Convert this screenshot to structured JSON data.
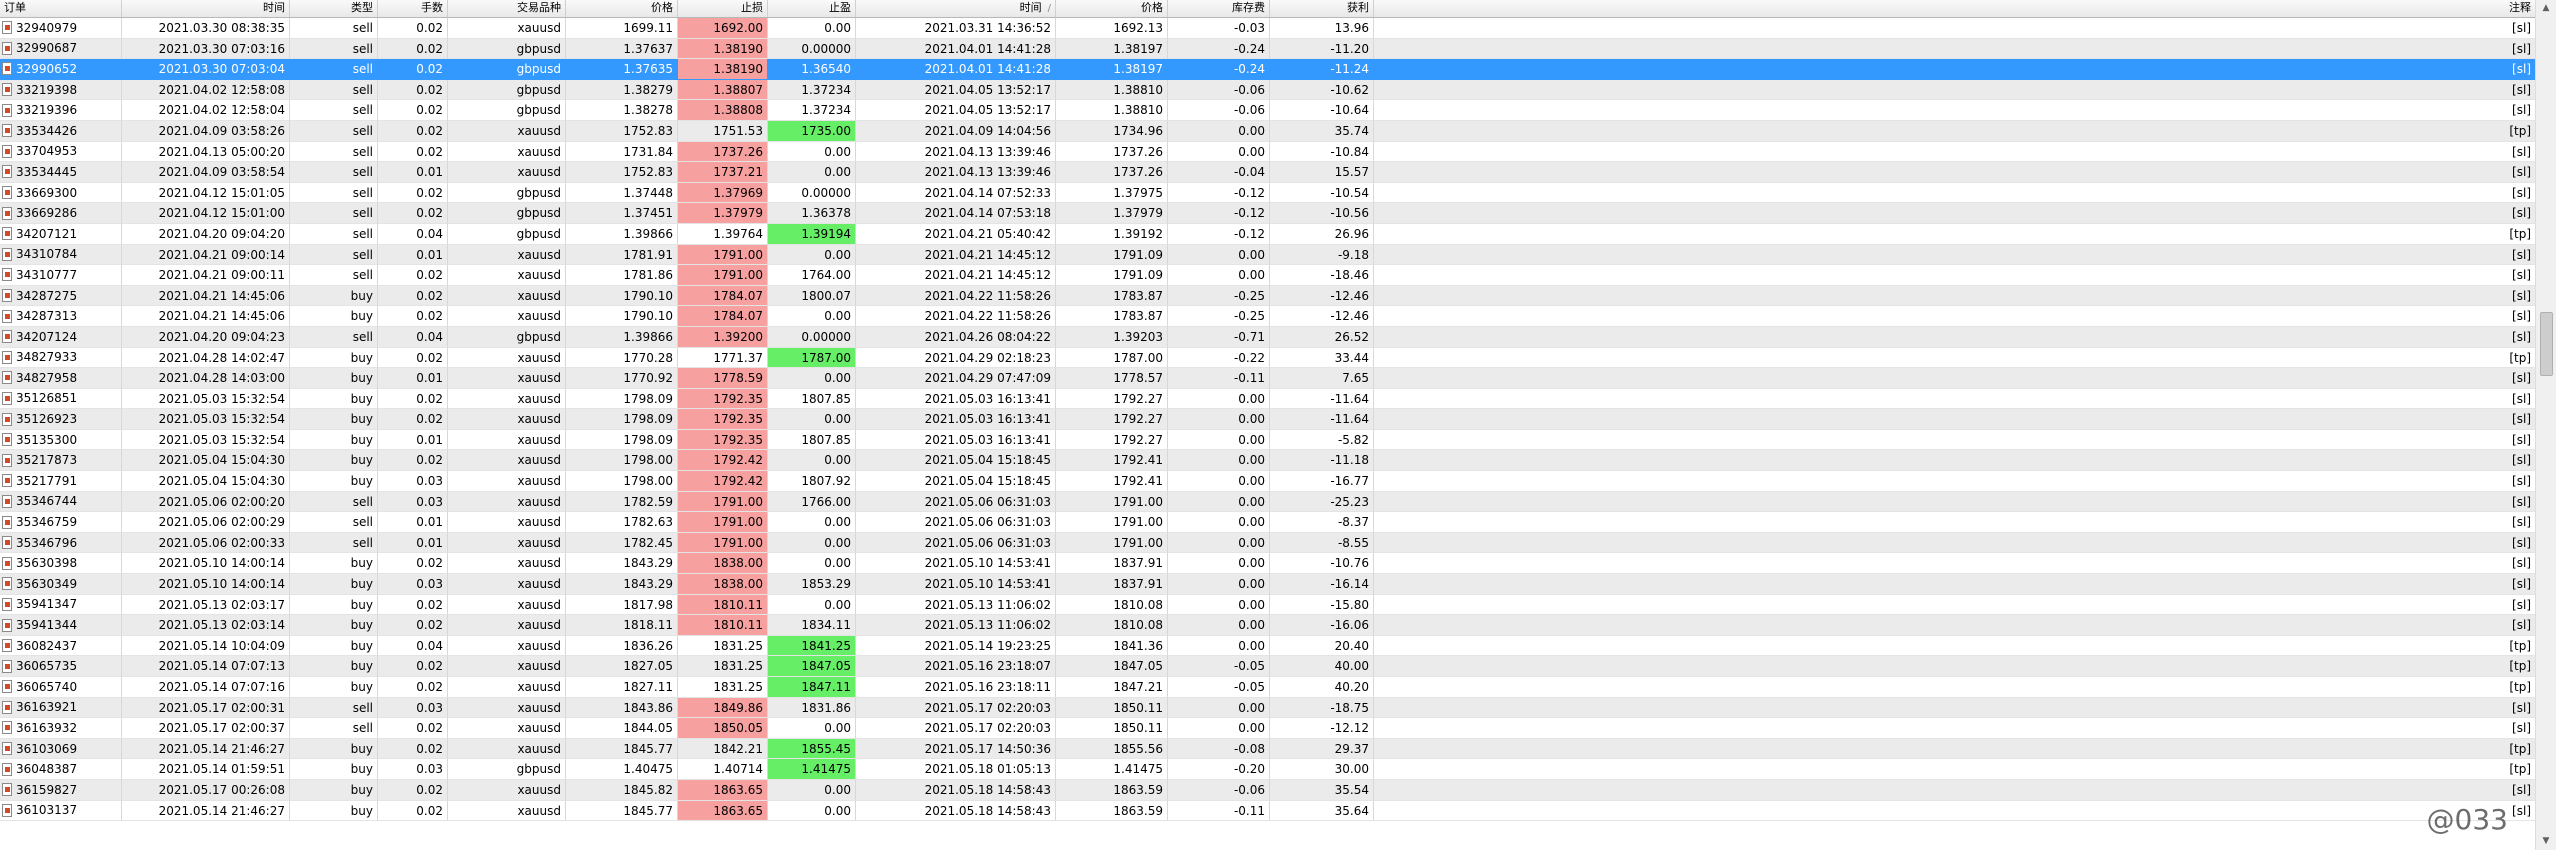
{
  "columns": [
    "订单",
    "时间",
    "类型",
    "手数",
    "交易品种",
    "价格",
    "止损",
    "止盈",
    "时间",
    "价格",
    "库存费",
    "获利",
    "注释"
  ],
  "sort_indicator": "/",
  "rows": [
    [
      "32940979",
      "2021.03.30 08:38:35",
      "sell",
      "0.02",
      "xauusd",
      "1699.11",
      "1692.00",
      "0.00",
      "2021.03.31 14:36:52",
      "1692.13",
      "-0.03",
      "13.96",
      "[sl]"
    ],
    [
      "32990687",
      "2021.03.30 07:03:16",
      "sell",
      "0.02",
      "gbpusd",
      "1.37637",
      "1.38190",
      "0.00000",
      "2021.04.01 14:41:28",
      "1.38197",
      "-0.24",
      "-11.20",
      "[sl]"
    ],
    [
      "32990652",
      "2021.03.30 07:03:04",
      "sell",
      "0.02",
      "gbpusd",
      "1.37635",
      "1.38190",
      "1.36540",
      "2021.04.01 14:41:28",
      "1.38197",
      "-0.24",
      "-11.24",
      "[sl]"
    ],
    [
      "33219398",
      "2021.04.02 12:58:08",
      "sell",
      "0.02",
      "gbpusd",
      "1.38279",
      "1.38807",
      "1.37234",
      "2021.04.05 13:52:17",
      "1.38810",
      "-0.06",
      "-10.62",
      "[sl]"
    ],
    [
      "33219396",
      "2021.04.02 12:58:04",
      "sell",
      "0.02",
      "gbpusd",
      "1.38278",
      "1.38808",
      "1.37234",
      "2021.04.05 13:52:17",
      "1.38810",
      "-0.06",
      "-10.64",
      "[sl]"
    ],
    [
      "33534426",
      "2021.04.09 03:58:26",
      "sell",
      "0.02",
      "xauusd",
      "1752.83",
      "1751.53",
      "1735.00",
      "2021.04.09 14:04:56",
      "1734.96",
      "0.00",
      "35.74",
      "[tp]"
    ],
    [
      "33704953",
      "2021.04.13 05:00:20",
      "sell",
      "0.02",
      "xauusd",
      "1731.84",
      "1737.26",
      "0.00",
      "2021.04.13 13:39:46",
      "1737.26",
      "0.00",
      "-10.84",
      "[sl]"
    ],
    [
      "33534445",
      "2021.04.09 03:58:54",
      "sell",
      "0.01",
      "xauusd",
      "1752.83",
      "1737.21",
      "0.00",
      "2021.04.13 13:39:46",
      "1737.26",
      "-0.04",
      "15.57",
      "[sl]"
    ],
    [
      "33669300",
      "2021.04.12 15:01:05",
      "sell",
      "0.02",
      "gbpusd",
      "1.37448",
      "1.37969",
      "0.00000",
      "2021.04.14 07:52:33",
      "1.37975",
      "-0.12",
      "-10.54",
      "[sl]"
    ],
    [
      "33669286",
      "2021.04.12 15:01:00",
      "sell",
      "0.02",
      "gbpusd",
      "1.37451",
      "1.37979",
      "1.36378",
      "2021.04.14 07:53:18",
      "1.37979",
      "-0.12",
      "-10.56",
      "[sl]"
    ],
    [
      "34207121",
      "2021.04.20 09:04:20",
      "sell",
      "0.04",
      "gbpusd",
      "1.39866",
      "1.39764",
      "1.39194",
      "2021.04.21 05:40:42",
      "1.39192",
      "-0.12",
      "26.96",
      "[tp]"
    ],
    [
      "34310784",
      "2021.04.21 09:00:14",
      "sell",
      "0.01",
      "xauusd",
      "1781.91",
      "1791.00",
      "0.00",
      "2021.04.21 14:45:12",
      "1791.09",
      "0.00",
      "-9.18",
      "[sl]"
    ],
    [
      "34310777",
      "2021.04.21 09:00:11",
      "sell",
      "0.02",
      "xauusd",
      "1781.86",
      "1791.00",
      "1764.00",
      "2021.04.21 14:45:12",
      "1791.09",
      "0.00",
      "-18.46",
      "[sl]"
    ],
    [
      "34287275",
      "2021.04.21 14:45:06",
      "buy",
      "0.02",
      "xauusd",
      "1790.10",
      "1784.07",
      "1800.07",
      "2021.04.22 11:58:26",
      "1783.87",
      "-0.25",
      "-12.46",
      "[sl]"
    ],
    [
      "34287313",
      "2021.04.21 14:45:06",
      "buy",
      "0.02",
      "xauusd",
      "1790.10",
      "1784.07",
      "0.00",
      "2021.04.22 11:58:26",
      "1783.87",
      "-0.25",
      "-12.46",
      "[sl]"
    ],
    [
      "34207124",
      "2021.04.20 09:04:23",
      "sell",
      "0.04",
      "gbpusd",
      "1.39866",
      "1.39200",
      "0.00000",
      "2021.04.26 08:04:22",
      "1.39203",
      "-0.71",
      "26.52",
      "[sl]"
    ],
    [
      "34827933",
      "2021.04.28 14:02:47",
      "buy",
      "0.02",
      "xauusd",
      "1770.28",
      "1771.37",
      "1787.00",
      "2021.04.29 02:18:23",
      "1787.00",
      "-0.22",
      "33.44",
      "[tp]"
    ],
    [
      "34827958",
      "2021.04.28 14:03:00",
      "buy",
      "0.01",
      "xauusd",
      "1770.92",
      "1778.59",
      "0.00",
      "2021.04.29 07:47:09",
      "1778.57",
      "-0.11",
      "7.65",
      "[sl]"
    ],
    [
      "35126851",
      "2021.05.03 15:32:54",
      "buy",
      "0.02",
      "xauusd",
      "1798.09",
      "1792.35",
      "1807.85",
      "2021.05.03 16:13:41",
      "1792.27",
      "0.00",
      "-11.64",
      "[sl]"
    ],
    [
      "35126923",
      "2021.05.03 15:32:54",
      "buy",
      "0.02",
      "xauusd",
      "1798.09",
      "1792.35",
      "0.00",
      "2021.05.03 16:13:41",
      "1792.27",
      "0.00",
      "-11.64",
      "[sl]"
    ],
    [
      "35135300",
      "2021.05.03 15:32:54",
      "buy",
      "0.01",
      "xauusd",
      "1798.09",
      "1792.35",
      "1807.85",
      "2021.05.03 16:13:41",
      "1792.27",
      "0.00",
      "-5.82",
      "[sl]"
    ],
    [
      "35217873",
      "2021.05.04 15:04:30",
      "buy",
      "0.02",
      "xauusd",
      "1798.00",
      "1792.42",
      "0.00",
      "2021.05.04 15:18:45",
      "1792.41",
      "0.00",
      "-11.18",
      "[sl]"
    ],
    [
      "35217791",
      "2021.05.04 15:04:30",
      "buy",
      "0.03",
      "xauusd",
      "1798.00",
      "1792.42",
      "1807.92",
      "2021.05.04 15:18:45",
      "1792.41",
      "0.00",
      "-16.77",
      "[sl]"
    ],
    [
      "35346744",
      "2021.05.06 02:00:20",
      "sell",
      "0.03",
      "xauusd",
      "1782.59",
      "1791.00",
      "1766.00",
      "2021.05.06 06:31:03",
      "1791.00",
      "0.00",
      "-25.23",
      "[sl]"
    ],
    [
      "35346759",
      "2021.05.06 02:00:29",
      "sell",
      "0.01",
      "xauusd",
      "1782.63",
      "1791.00",
      "0.00",
      "2021.05.06 06:31:03",
      "1791.00",
      "0.00",
      "-8.37",
      "[sl]"
    ],
    [
      "35346796",
      "2021.05.06 02:00:33",
      "sell",
      "0.01",
      "xauusd",
      "1782.45",
      "1791.00",
      "0.00",
      "2021.05.06 06:31:03",
      "1791.00",
      "0.00",
      "-8.55",
      "[sl]"
    ],
    [
      "35630398",
      "2021.05.10 14:00:14",
      "buy",
      "0.02",
      "xauusd",
      "1843.29",
      "1838.00",
      "0.00",
      "2021.05.10 14:53:41",
      "1837.91",
      "0.00",
      "-10.76",
      "[sl]"
    ],
    [
      "35630349",
      "2021.05.10 14:00:14",
      "buy",
      "0.03",
      "xauusd",
      "1843.29",
      "1838.00",
      "1853.29",
      "2021.05.10 14:53:41",
      "1837.91",
      "0.00",
      "-16.14",
      "[sl]"
    ],
    [
      "35941347",
      "2021.05.13 02:03:17",
      "buy",
      "0.02",
      "xauusd",
      "1817.98",
      "1810.11",
      "0.00",
      "2021.05.13 11:06:02",
      "1810.08",
      "0.00",
      "-15.80",
      "[sl]"
    ],
    [
      "35941344",
      "2021.05.13 02:03:14",
      "buy",
      "0.02",
      "xauusd",
      "1818.11",
      "1810.11",
      "1834.11",
      "2021.05.13 11:06:02",
      "1810.08",
      "0.00",
      "-16.06",
      "[sl]"
    ],
    [
      "36082437",
      "2021.05.14 10:04:09",
      "buy",
      "0.04",
      "xauusd",
      "1836.26",
      "1831.25",
      "1841.25",
      "2021.05.14 19:23:25",
      "1841.36",
      "0.00",
      "20.40",
      "[tp]"
    ],
    [
      "36065735",
      "2021.05.14 07:07:13",
      "buy",
      "0.02",
      "xauusd",
      "1827.05",
      "1831.25",
      "1847.05",
      "2021.05.16 23:18:07",
      "1847.05",
      "-0.05",
      "40.00",
      "[tp]"
    ],
    [
      "36065740",
      "2021.05.14 07:07:16",
      "buy",
      "0.02",
      "xauusd",
      "1827.11",
      "1831.25",
      "1847.11",
      "2021.05.16 23:18:11",
      "1847.21",
      "-0.05",
      "40.20",
      "[tp]"
    ],
    [
      "36163921",
      "2021.05.17 02:00:31",
      "sell",
      "0.03",
      "xauusd",
      "1843.86",
      "1849.86",
      "1831.86",
      "2021.05.17 02:20:03",
      "1850.11",
      "0.00",
      "-18.75",
      "[sl]"
    ],
    [
      "36163932",
      "2021.05.17 02:00:37",
      "sell",
      "0.02",
      "xauusd",
      "1844.05",
      "1850.05",
      "0.00",
      "2021.05.17 02:20:03",
      "1850.11",
      "0.00",
      "-12.12",
      "[sl]"
    ],
    [
      "36103069",
      "2021.05.14 21:46:27",
      "buy",
      "0.02",
      "xauusd",
      "1845.77",
      "1842.21",
      "1855.45",
      "2021.05.17 14:50:36",
      "1855.56",
      "-0.08",
      "29.37",
      "[tp]"
    ],
    [
      "36048387",
      "2021.05.14 01:59:51",
      "buy",
      "0.03",
      "gbpusd",
      "1.40475",
      "1.40714",
      "1.41475",
      "2021.05.18 01:05:13",
      "1.41475",
      "-0.20",
      "30.00",
      "[tp]"
    ],
    [
      "36159827",
      "2021.05.17 00:26:08",
      "buy",
      "0.02",
      "xauusd",
      "1845.82",
      "1863.65",
      "0.00",
      "2021.05.18 14:58:43",
      "1863.59",
      "-0.06",
      "35.54",
      "[sl]"
    ],
    [
      "36103137",
      "2021.05.14 21:46:27",
      "buy",
      "0.02",
      "xauusd",
      "1845.77",
      "1863.65",
      "0.00",
      "2021.05.18 14:58:43",
      "1863.59",
      "-0.11",
      "35.64",
      "[sl]"
    ]
  ],
  "selected_row": 2,
  "stoploss_red_rows": [
    0,
    1,
    2,
    3,
    4,
    6,
    7,
    8,
    9,
    11,
    12,
    13,
    14,
    15,
    17,
    18,
    19,
    20,
    21,
    22,
    23,
    24,
    25,
    26,
    27,
    28,
    29,
    33,
    34,
    37,
    38
  ],
  "takeprofit_green_rows": [
    5,
    10,
    16,
    30,
    31,
    32,
    35,
    36
  ],
  "colors": {
    "selected": "#3399ff",
    "stoploss_hit": "#f6a0a0",
    "takeprofit_hit": "#66ee66",
    "alt_row": "#ebebeb"
  },
  "row_icon": "document-icon",
  "watermark": "@033"
}
